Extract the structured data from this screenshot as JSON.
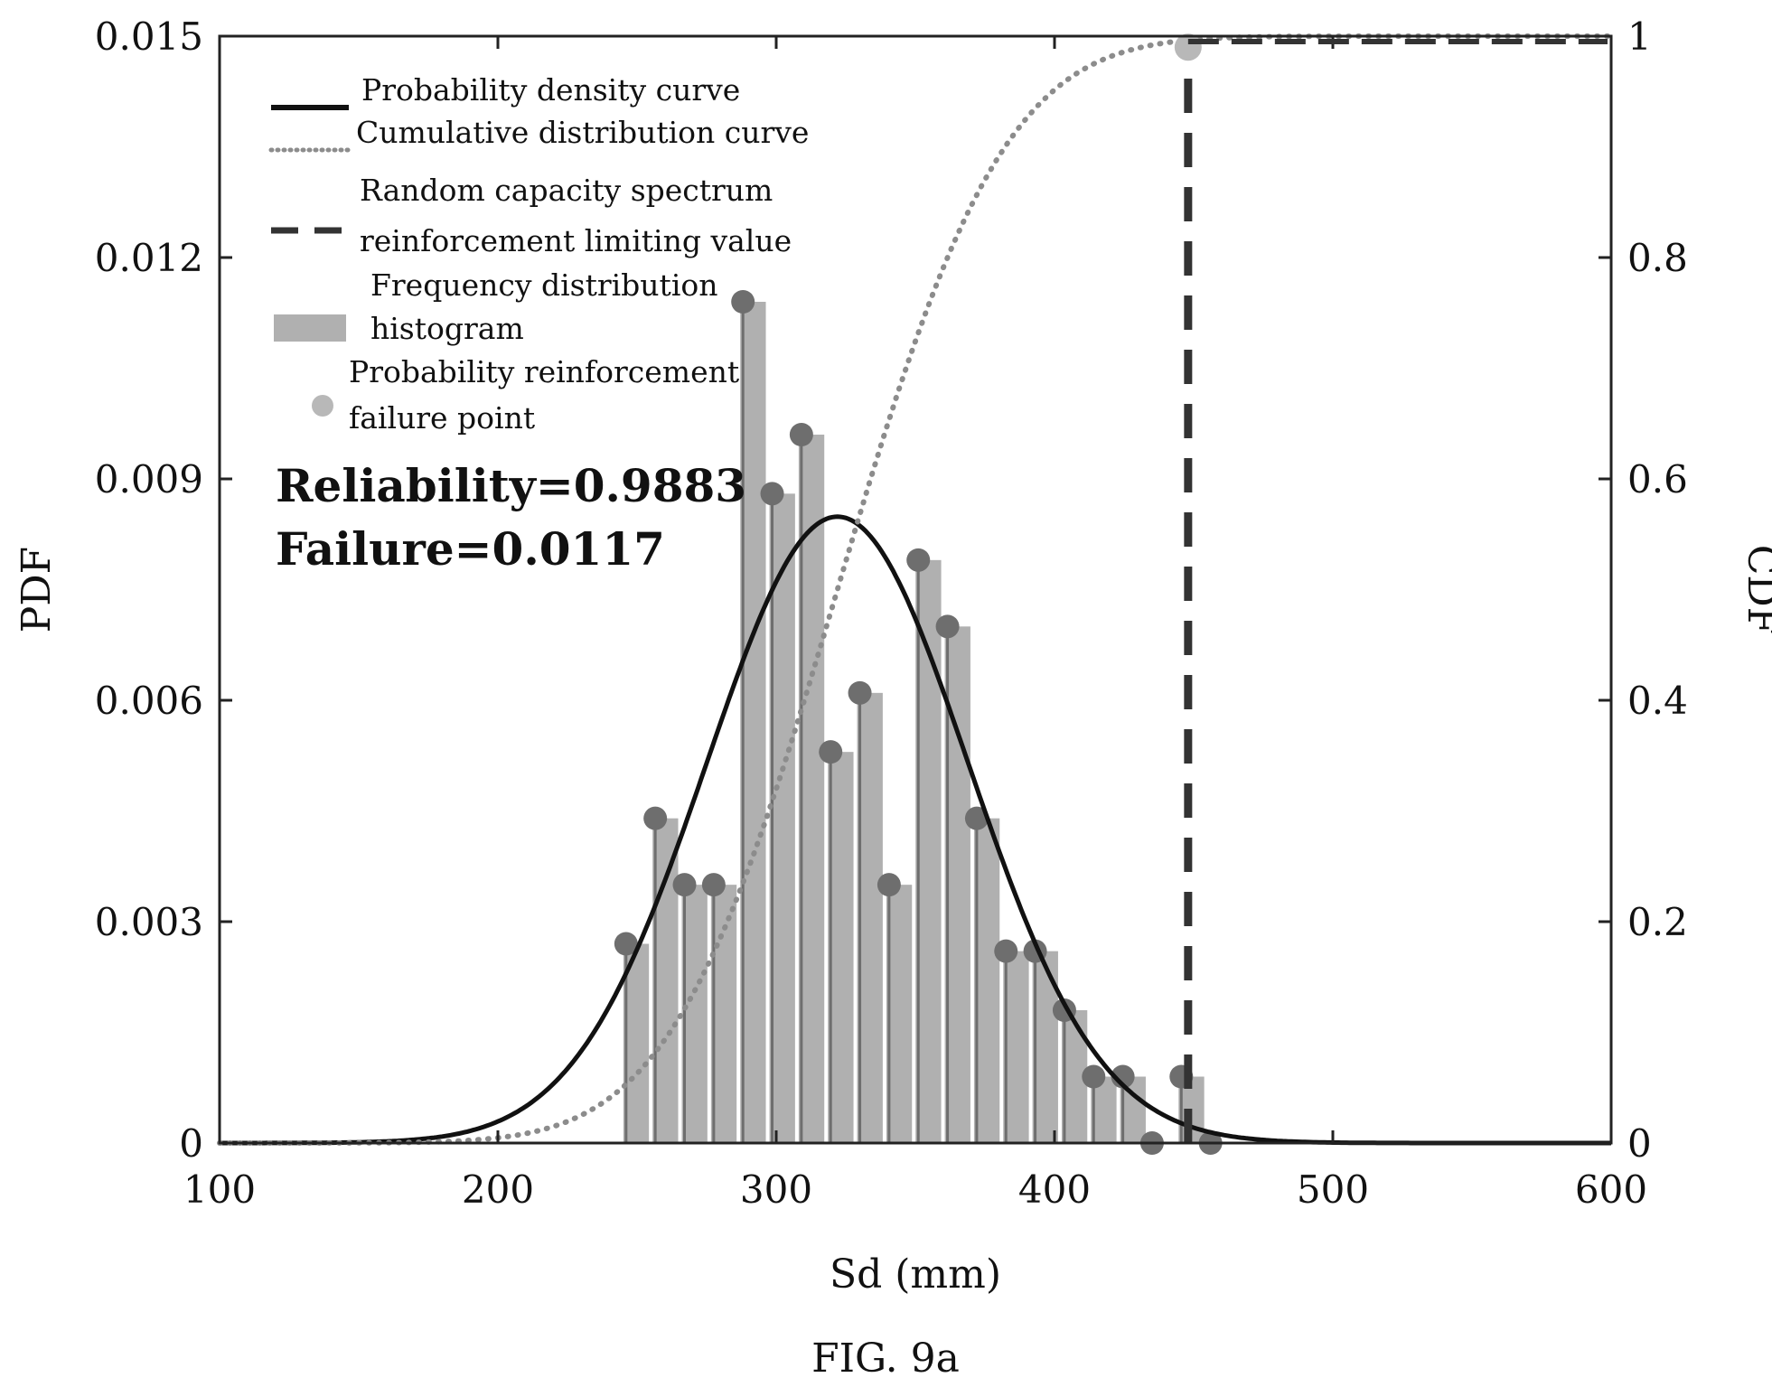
{
  "figure_caption": "FIG. 9a",
  "colors": {
    "pdf_curve": "#111111",
    "cdf_curve": "#8c8c8c",
    "limit_line": "#333333",
    "histogram": "#b0b0b0",
    "stem_marker": "#6e6e6e",
    "failure_point": "#b8b8b8"
  },
  "chart_data": {
    "type": "bar",
    "xlabel": "Sd (mm)",
    "ylabel_left": "PDF",
    "ylabel_right": "CDF",
    "xlim": [
      100,
      600
    ],
    "ylim_left": [
      0,
      0.015
    ],
    "ylim_right": [
      0,
      1
    ],
    "x_ticks": [
      "100",
      "200",
      "300",
      "400",
      "500",
      "600"
    ],
    "y_ticks_left": [
      "0",
      "0.003",
      "0.006",
      "0.009",
      "0.012",
      "0.015"
    ],
    "y_ticks_right": [
      "0",
      "0.2",
      "0.4",
      "0.6",
      "0.8",
      "1"
    ],
    "grid": false,
    "legend_position": "top-left",
    "legend": [
      {
        "label": "Probability density curve",
        "kind": "solid-line"
      },
      {
        "label": "Cumulative distribution curve",
        "kind": "dotted-line"
      },
      {
        "label_lines": [
          "Random capacity spectrum",
          "reinforcement limiting value"
        ],
        "kind": "dashed-line"
      },
      {
        "label_lines": [
          "Frequency distribution",
          "histogram"
        ],
        "kind": "bar"
      },
      {
        "label_lines": [
          "Probability reinforcement",
          "failure point"
        ],
        "kind": "marker"
      }
    ],
    "annotations": [
      "Reliability=0.9883",
      "Failure=0.0117"
    ],
    "histogram": {
      "bin_width": 10.5,
      "bin_centers": [
        250,
        260.5,
        271,
        281.5,
        292,
        302.5,
        313,
        323.5,
        334,
        344.5,
        355,
        365.5,
        376,
        386.5,
        397,
        407.5,
        418,
        428.5,
        439,
        449.5,
        460
      ],
      "values": [
        0.0027,
        0.0044,
        0.0035,
        0.0035,
        0.0114,
        0.0088,
        0.0096,
        0.0053,
        0.0061,
        0.0035,
        0.0079,
        0.007,
        0.0044,
        0.0026,
        0.0026,
        0.0018,
        0.0009,
        0.0009,
        0,
        0.0009,
        0
      ]
    },
    "pdf_curve": {
      "distribution": "normal",
      "mean": 322,
      "std": 47,
      "x_range": [
        100,
        600
      ]
    },
    "cdf_curve": {
      "distribution": "normal",
      "mean": 322,
      "std": 47,
      "x_range": [
        100,
        600
      ],
      "axis": "right"
    },
    "limit_value": {
      "x": 448
    },
    "failure_point": {
      "x": 448,
      "cdf": 0.99
    }
  }
}
